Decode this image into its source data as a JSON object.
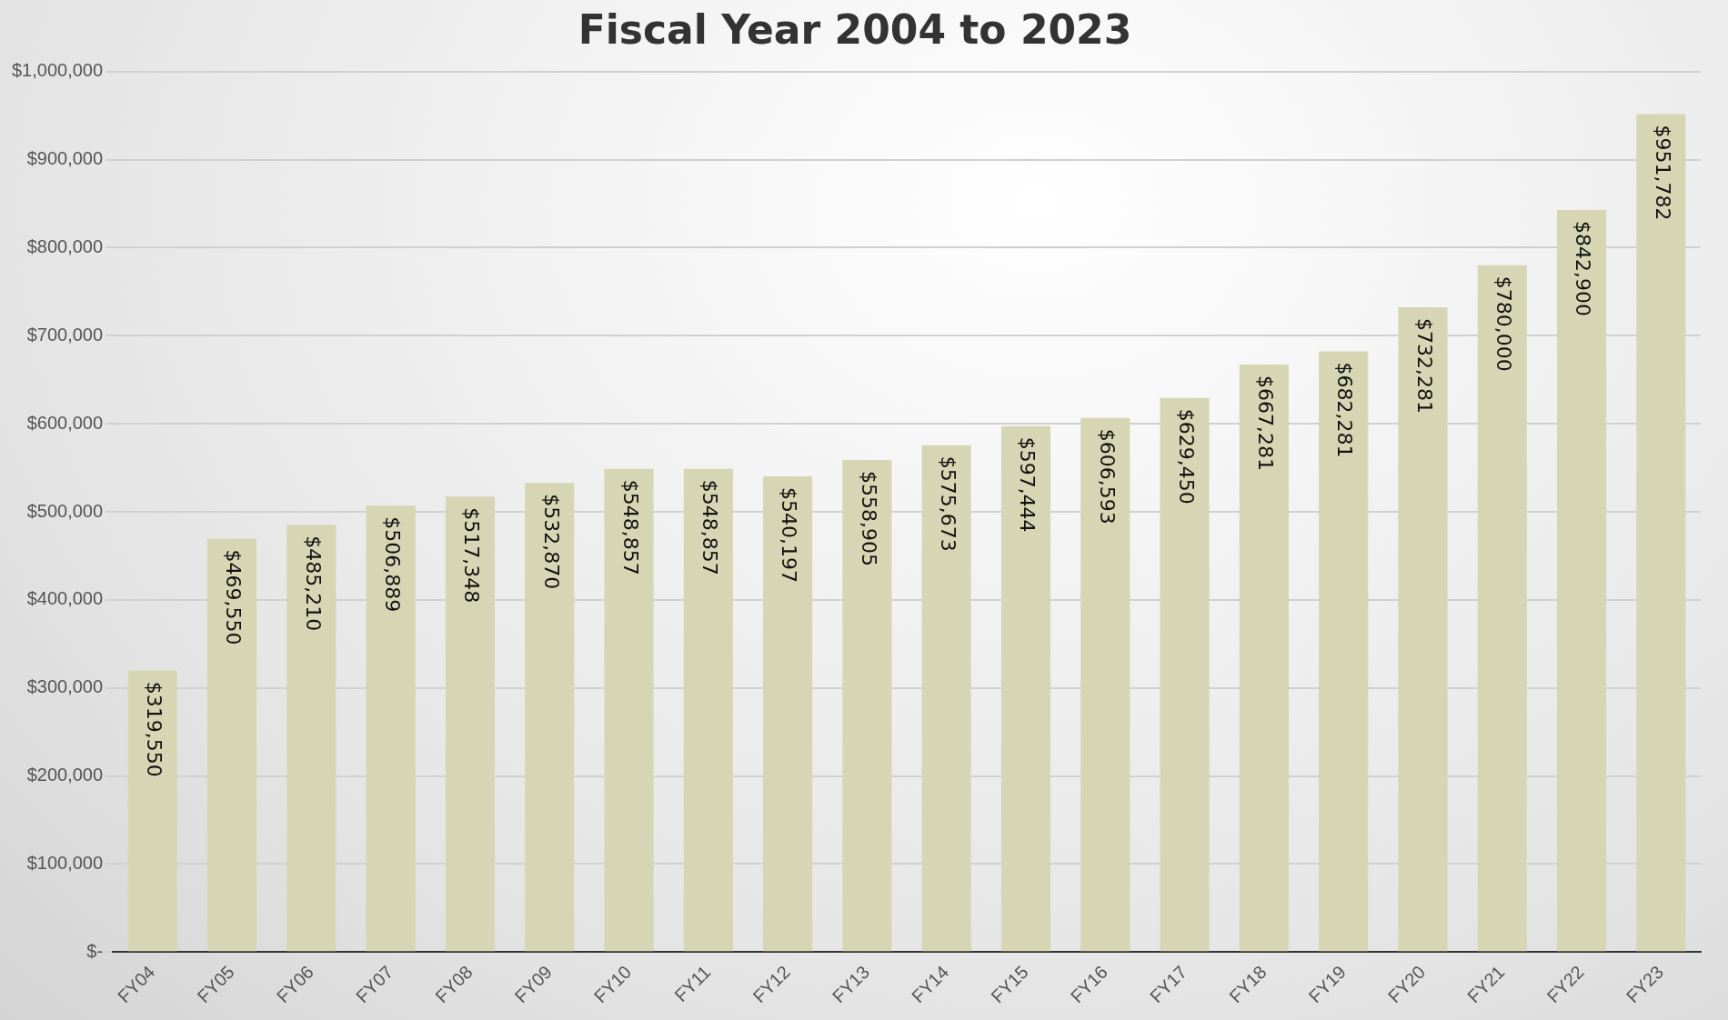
{
  "chart_data": {
    "type": "bar",
    "title": "Fiscal Year 2004 to 2023",
    "categories": [
      "FY04",
      "FY05",
      "FY06",
      "FY07",
      "FY08",
      "FY09",
      "FY10",
      "FY11",
      "FY12",
      "FY13",
      "FY14",
      "FY15",
      "FY16",
      "FY17",
      "FY18",
      "FY19",
      "FY20",
      "FY21",
      "FY22",
      "FY23"
    ],
    "values": [
      319550,
      469550,
      485210,
      506889,
      517348,
      532870,
      548857,
      548857,
      540197,
      558905,
      575673,
      597444,
      606593,
      629450,
      667281,
      682281,
      732281,
      780000,
      842900,
      951782
    ],
    "value_labels": [
      "$319,550",
      "$469,550",
      "$485,210",
      "$506,889",
      "$517,348",
      "$532,870",
      "$548,857",
      "$548,857",
      "$540,197",
      "$558,905",
      "$575,673",
      "$597,444",
      "$606,593",
      "$629,450",
      "$667,281",
      "$682,281",
      "$732,281",
      "$780,000",
      "$842,900",
      "$951,782"
    ],
    "color": "#d6d6b4",
    "ylim": [
      0,
      1000000
    ],
    "yticks": [
      {
        "value": 0,
        "label": "$-"
      },
      {
        "value": 100000,
        "label": "$100,000"
      },
      {
        "value": 200000,
        "label": "$200,000"
      },
      {
        "value": 300000,
        "label": "$300,000"
      },
      {
        "value": 400000,
        "label": "$400,000"
      },
      {
        "value": 500000,
        "label": "$500,000"
      },
      {
        "value": 600000,
        "label": "$600,000"
      },
      {
        "value": 700000,
        "label": "$700,000"
      },
      {
        "value": 800000,
        "label": "$800,000"
      },
      {
        "value": 900000,
        "label": "$900,000"
      },
      {
        "value": 1000000,
        "label": "$1,000,000"
      }
    ],
    "grid": "y",
    "legend": false
  }
}
